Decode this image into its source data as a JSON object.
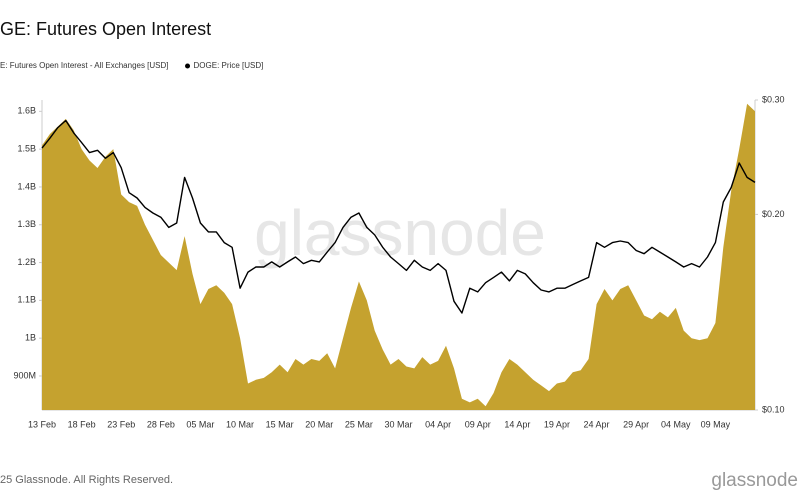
{
  "chart_data": {
    "type": "area-line",
    "title": "GE: Futures Open Interest",
    "categories": [
      "13 Feb",
      null,
      null,
      null,
      null,
      "18 Feb",
      null,
      null,
      null,
      null,
      "23 Feb",
      null,
      null,
      null,
      null,
      "28 Feb",
      null,
      null,
      null,
      null,
      "05 Mar",
      null,
      null,
      null,
      null,
      "10 Mar",
      null,
      null,
      null,
      null,
      "15 Mar",
      null,
      null,
      null,
      null,
      "20 Mar",
      null,
      null,
      null,
      null,
      "25 Mar",
      null,
      null,
      null,
      null,
      "30 Mar",
      null,
      null,
      null,
      null,
      "04 Apr",
      null,
      null,
      null,
      null,
      "09 Apr",
      null,
      null,
      null,
      null,
      "14 Apr",
      null,
      null,
      null,
      null,
      "19 Apr",
      null,
      null,
      null,
      null,
      "24 Apr",
      null,
      null,
      null,
      null,
      "29 Apr",
      null,
      null,
      null,
      null,
      "04 May",
      null,
      null,
      null,
      null,
      "09 May",
      null,
      null,
      null,
      null,
      null
    ],
    "series": [
      {
        "name": "E: Futures Open Interest - All Exchanges [USD]",
        "color": "#c5a22f",
        "axis": "y",
        "values": [
          1510000000,
          1540000000,
          1560000000,
          1580000000,
          1550000000,
          1500000000,
          1470000000,
          1450000000,
          1480000000,
          1500000000,
          1380000000,
          1360000000,
          1350000000,
          1300000000,
          1260000000,
          1220000000,
          1200000000,
          1180000000,
          1270000000,
          1170000000,
          1090000000,
          1130000000,
          1140000000,
          1120000000,
          1090000000,
          1000000000,
          880000000,
          890000000,
          895000000,
          910000000,
          930000000,
          910000000,
          945000000,
          930000000,
          945000000,
          940000000,
          960000000,
          920000000,
          1000000000,
          1080000000,
          1150000000,
          1100000000,
          1020000000,
          970000000,
          930000000,
          945000000,
          925000000,
          920000000,
          950000000,
          930000000,
          940000000,
          980000000,
          920000000,
          840000000,
          830000000,
          840000000,
          820000000,
          855000000,
          910000000,
          945000000,
          930000000,
          910000000,
          890000000,
          875000000,
          860000000,
          880000000,
          885000000,
          910000000,
          915000000,
          945000000,
          1090000000,
          1130000000,
          1100000000,
          1130000000,
          1140000000,
          1100000000,
          1060000000,
          1050000000,
          1070000000,
          1055000000,
          1080000000,
          1020000000,
          1000000000,
          995000000,
          1000000000,
          1040000000,
          1240000000,
          1390000000,
          1500000000,
          1620000000,
          1600000000
        ]
      },
      {
        "name": "DOGE: Price [USD]",
        "color": "#000000",
        "axis": "y2",
        "values": [
          0.253,
          0.262,
          0.272,
          0.279,
          0.267,
          0.258,
          0.249,
          0.251,
          0.244,
          0.249,
          0.236,
          0.216,
          0.212,
          0.205,
          0.201,
          0.198,
          0.191,
          0.194,
          0.228,
          0.212,
          0.194,
          0.188,
          0.188,
          0.181,
          0.178,
          0.154,
          0.163,
          0.166,
          0.166,
          0.169,
          0.166,
          0.169,
          0.172,
          0.168,
          0.17,
          0.169,
          0.175,
          0.181,
          0.191,
          0.198,
          0.201,
          0.191,
          0.186,
          0.178,
          0.172,
          0.168,
          0.164,
          0.17,
          0.166,
          0.164,
          0.168,
          0.164,
          0.147,
          0.141,
          0.154,
          0.152,
          0.157,
          0.16,
          0.163,
          0.158,
          0.164,
          0.162,
          0.157,
          0.153,
          0.152,
          0.154,
          0.154,
          0.156,
          0.158,
          0.16,
          0.181,
          0.178,
          0.181,
          0.182,
          0.181,
          0.176,
          0.174,
          0.178,
          0.175,
          0.172,
          0.169,
          0.166,
          0.168,
          0.166,
          0.172,
          0.181,
          0.209,
          0.22,
          0.24,
          0.228,
          0.224
        ]
      }
    ],
    "ylim": [
      810000000,
      1630000000
    ],
    "yticks": [
      {
        "value": 900000000,
        "label": "900M"
      },
      {
        "value": 1000000000,
        "label": "1B"
      },
      {
        "value": 1100000000,
        "label": "1.1B"
      },
      {
        "value": 1200000000,
        "label": "1.2B"
      },
      {
        "value": 1300000000,
        "label": "1.3B"
      },
      {
        "value": 1400000000,
        "label": "1.4B"
      },
      {
        "value": 1500000000,
        "label": "1.5B"
      },
      {
        "value": 1600000000,
        "label": "1.6B"
      }
    ],
    "y2lim": [
      0.1,
      0.3
    ],
    "y2scale": "log",
    "y2ticks": [
      {
        "value": 0.1,
        "label": "$0.10"
      },
      {
        "value": 0.2,
        "label": "$0.20"
      },
      {
        "value": 0.3,
        "label": "$0.30"
      }
    ],
    "grid": false,
    "watermark": "glassnode",
    "footer": "25 Glassnode. All Rights Reserved.",
    "logo": "glassnode"
  }
}
